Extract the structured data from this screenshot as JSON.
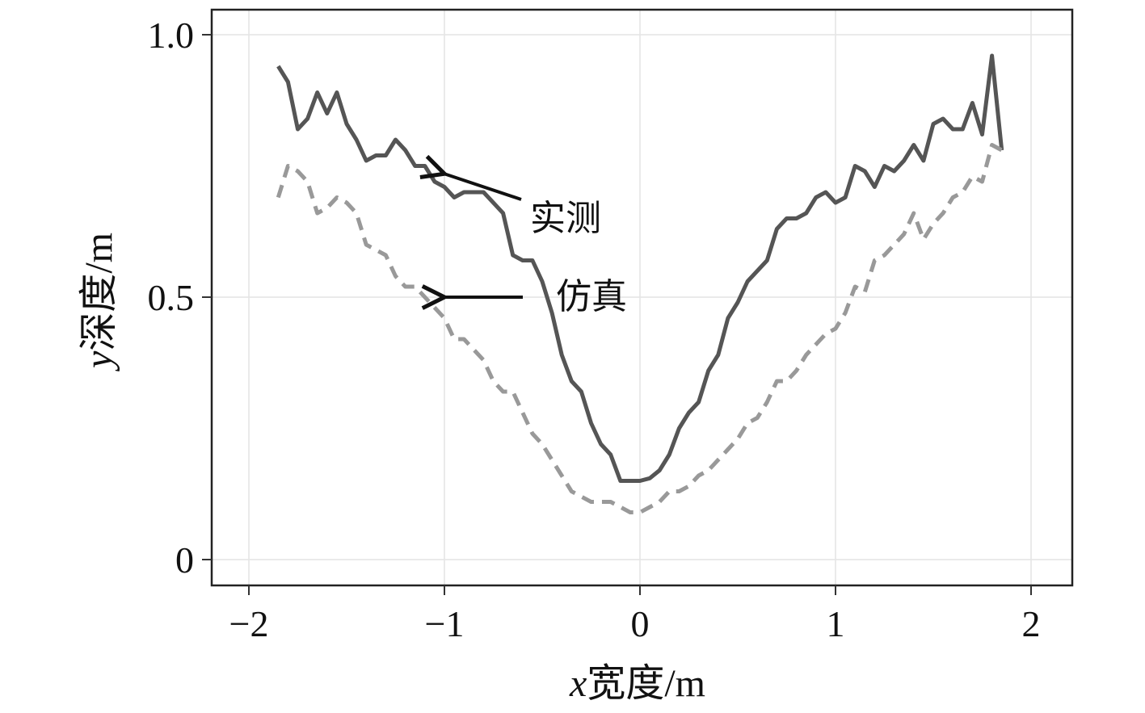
{
  "chart_data": {
    "type": "line",
    "title": "",
    "xlabel": {
      "var": "x",
      "text": "宽度/m"
    },
    "ylabel": {
      "var": "y",
      "text": "深度/m"
    },
    "xlim": [
      -2.2,
      2.2
    ],
    "ylim": [
      -0.05,
      1.05
    ],
    "xticks": [
      -2,
      -1,
      0,
      1,
      2
    ],
    "xtick_labels": [
      "−2",
      "−1",
      "0",
      "1",
      "2"
    ],
    "yticks": [
      0,
      0.5,
      1.0
    ],
    "ytick_labels": [
      "0",
      "0.5",
      "1.0"
    ],
    "grid": true,
    "series": [
      {
        "name": "实测",
        "style": "solid",
        "color": "#555555",
        "points": [
          [
            -1.85,
            0.94
          ],
          [
            -1.8,
            0.91
          ],
          [
            -1.75,
            0.82
          ],
          [
            -1.7,
            0.84
          ],
          [
            -1.65,
            0.89
          ],
          [
            -1.6,
            0.85
          ],
          [
            -1.55,
            0.89
          ],
          [
            -1.5,
            0.83
          ],
          [
            -1.45,
            0.8
          ],
          [
            -1.4,
            0.76
          ],
          [
            -1.35,
            0.77
          ],
          [
            -1.3,
            0.77
          ],
          [
            -1.25,
            0.8
          ],
          [
            -1.2,
            0.78
          ],
          [
            -1.15,
            0.75
          ],
          [
            -1.1,
            0.75
          ],
          [
            -1.05,
            0.72
          ],
          [
            -1.0,
            0.71
          ],
          [
            -0.95,
            0.69
          ],
          [
            -0.9,
            0.7
          ],
          [
            -0.85,
            0.7
          ],
          [
            -0.8,
            0.7
          ],
          [
            -0.75,
            0.68
          ],
          [
            -0.7,
            0.66
          ],
          [
            -0.65,
            0.58
          ],
          [
            -0.6,
            0.57
          ],
          [
            -0.55,
            0.57
          ],
          [
            -0.5,
            0.53
          ],
          [
            -0.45,
            0.47
          ],
          [
            -0.4,
            0.39
          ],
          [
            -0.35,
            0.34
          ],
          [
            -0.3,
            0.32
          ],
          [
            -0.25,
            0.26
          ],
          [
            -0.2,
            0.22
          ],
          [
            -0.15,
            0.2
          ],
          [
            -0.1,
            0.15
          ],
          [
            -0.05,
            0.15
          ],
          [
            0.0,
            0.15
          ],
          [
            0.05,
            0.155
          ],
          [
            0.1,
            0.17
          ],
          [
            0.15,
            0.2
          ],
          [
            0.2,
            0.25
          ],
          [
            0.25,
            0.28
          ],
          [
            0.3,
            0.3
          ],
          [
            0.35,
            0.36
          ],
          [
            0.4,
            0.39
          ],
          [
            0.45,
            0.46
          ],
          [
            0.5,
            0.49
          ],
          [
            0.55,
            0.53
          ],
          [
            0.6,
            0.55
          ],
          [
            0.65,
            0.57
          ],
          [
            0.7,
            0.63
          ],
          [
            0.75,
            0.65
          ],
          [
            0.8,
            0.65
          ],
          [
            0.85,
            0.66
          ],
          [
            0.9,
            0.69
          ],
          [
            0.95,
            0.7
          ],
          [
            1.0,
            0.68
          ],
          [
            1.05,
            0.69
          ],
          [
            1.1,
            0.75
          ],
          [
            1.15,
            0.74
          ],
          [
            1.2,
            0.71
          ],
          [
            1.25,
            0.75
          ],
          [
            1.3,
            0.74
          ],
          [
            1.35,
            0.76
          ],
          [
            1.4,
            0.79
          ],
          [
            1.45,
            0.76
          ],
          [
            1.5,
            0.83
          ],
          [
            1.55,
            0.84
          ],
          [
            1.6,
            0.82
          ],
          [
            1.65,
            0.82
          ],
          [
            1.7,
            0.87
          ],
          [
            1.75,
            0.81
          ],
          [
            1.8,
            0.96
          ],
          [
            1.85,
            0.78
          ]
        ]
      },
      {
        "name": "仿真",
        "style": "dashed",
        "color": "#999999",
        "points": [
          [
            -1.85,
            0.69
          ],
          [
            -1.8,
            0.75
          ],
          [
            -1.75,
            0.74
          ],
          [
            -1.7,
            0.72
          ],
          [
            -1.65,
            0.66
          ],
          [
            -1.6,
            0.67
          ],
          [
            -1.55,
            0.69
          ],
          [
            -1.5,
            0.68
          ],
          [
            -1.45,
            0.66
          ],
          [
            -1.4,
            0.6
          ],
          [
            -1.35,
            0.59
          ],
          [
            -1.3,
            0.58
          ],
          [
            -1.25,
            0.54
          ],
          [
            -1.2,
            0.52
          ],
          [
            -1.15,
            0.52
          ],
          [
            -1.1,
            0.5
          ],
          [
            -1.05,
            0.48
          ],
          [
            -1.0,
            0.46
          ],
          [
            -0.95,
            0.42
          ],
          [
            -0.9,
            0.42
          ],
          [
            -0.85,
            0.4
          ],
          [
            -0.8,
            0.38
          ],
          [
            -0.75,
            0.34
          ],
          [
            -0.7,
            0.32
          ],
          [
            -0.65,
            0.32
          ],
          [
            -0.6,
            0.28
          ],
          [
            -0.55,
            0.24
          ],
          [
            -0.5,
            0.22
          ],
          [
            -0.45,
            0.19
          ],
          [
            -0.4,
            0.16
          ],
          [
            -0.35,
            0.13
          ],
          [
            -0.3,
            0.12
          ],
          [
            -0.25,
            0.11
          ],
          [
            -0.2,
            0.11
          ],
          [
            -0.15,
            0.11
          ],
          [
            -0.1,
            0.1
          ],
          [
            -0.05,
            0.09
          ],
          [
            0.0,
            0.09
          ],
          [
            0.05,
            0.1
          ],
          [
            0.1,
            0.11
          ],
          [
            0.15,
            0.13
          ],
          [
            0.2,
            0.13
          ],
          [
            0.25,
            0.14
          ],
          [
            0.3,
            0.16
          ],
          [
            0.35,
            0.17
          ],
          [
            0.4,
            0.19
          ],
          [
            0.45,
            0.21
          ],
          [
            0.5,
            0.23
          ],
          [
            0.55,
            0.26
          ],
          [
            0.6,
            0.27
          ],
          [
            0.65,
            0.3
          ],
          [
            0.7,
            0.34
          ],
          [
            0.75,
            0.34
          ],
          [
            0.8,
            0.36
          ],
          [
            0.85,
            0.39
          ],
          [
            0.9,
            0.41
          ],
          [
            0.95,
            0.43
          ],
          [
            1.0,
            0.44
          ],
          [
            1.05,
            0.47
          ],
          [
            1.1,
            0.52
          ],
          [
            1.15,
            0.51
          ],
          [
            1.2,
            0.57
          ],
          [
            1.25,
            0.58
          ],
          [
            1.3,
            0.6
          ],
          [
            1.35,
            0.62
          ],
          [
            1.4,
            0.66
          ],
          [
            1.45,
            0.61
          ],
          [
            1.5,
            0.64
          ],
          [
            1.55,
            0.66
          ],
          [
            1.6,
            0.69
          ],
          [
            1.65,
            0.7
          ],
          [
            1.7,
            0.73
          ],
          [
            1.75,
            0.72
          ],
          [
            1.8,
            0.79
          ],
          [
            1.85,
            0.78
          ]
        ]
      }
    ],
    "annotations": [
      {
        "text": "实测",
        "series": "实测",
        "target": [
          -1.0,
          0.735
        ]
      },
      {
        "text": "仿真",
        "series": "仿真",
        "target": [
          -1.0,
          0.5
        ]
      }
    ]
  }
}
